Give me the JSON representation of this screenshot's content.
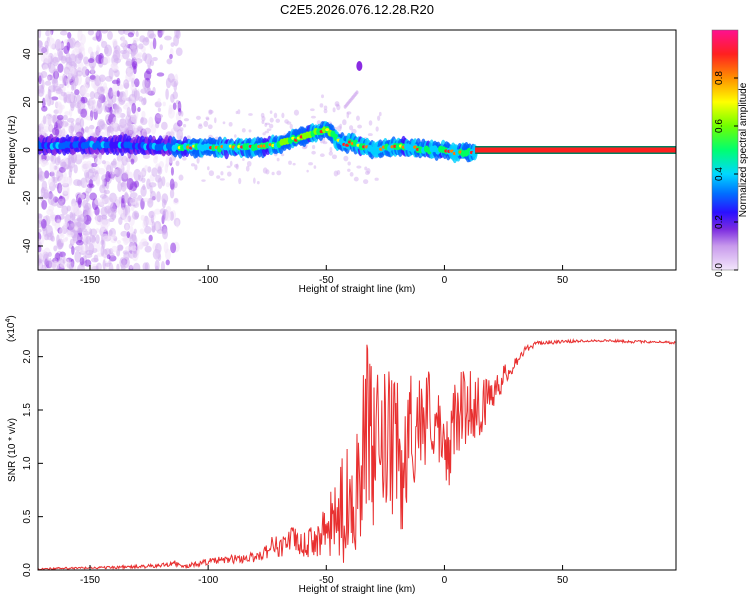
{
  "figure_title": "C2E5.2026.076.12.28.R20",
  "chart_data": [
    {
      "type": "heatmap",
      "title": "C2E5.2026.076.12.28.R20",
      "xlabel": "Height of straight line (km)",
      "ylabel": "Frequency (Hz)",
      "xlim": [
        -172,
        98
      ],
      "ylim": [
        -50,
        50
      ],
      "x_ticks": [
        -150,
        -100,
        -50,
        0,
        50
      ],
      "x_tick_labels": [
        "-150",
        "-100",
        "-50",
        "0",
        "50"
      ],
      "y_ticks": [
        -40,
        -20,
        0,
        20,
        40
      ],
      "y_tick_labels": [
        "-40",
        "-20",
        "0",
        "20",
        "40"
      ],
      "colorbar": {
        "label": "Normalized spectral amplitude",
        "range": [
          0,
          1
        ],
        "ticks": [
          0.0,
          0.2,
          0.4,
          0.6,
          0.8
        ],
        "tick_labels": [
          "0.0",
          "0.2",
          "0.4",
          "0.6",
          "0.8"
        ],
        "colormap": [
          "#f2e4fa",
          "#d4b0f0",
          "#8a2be2",
          "#3a10ff",
          "#0060ff",
          "#00d0ff",
          "#00ff60",
          "#80ff00",
          "#ffff00",
          "#ff8000",
          "#ff2020",
          "#ff0080"
        ]
      },
      "ridge": {
        "x": [
          -150,
          -140,
          -130,
          -120,
          -110,
          -100,
          -90,
          -80,
          -75,
          -70,
          -65,
          -60,
          -55,
          -50,
          -48,
          -45,
          -42,
          -40,
          -35,
          -30,
          -25,
          -20,
          -15,
          -10,
          -5,
          0,
          5,
          10,
          13
        ],
        "freq": [
          2,
          2,
          2,
          1.5,
          1,
          1,
          1,
          1,
          1.5,
          2.5,
          4,
          5.5,
          7,
          8.5,
          7,
          4,
          2,
          3,
          1.5,
          0,
          1,
          1.5,
          1,
          0.5,
          0,
          0,
          -1,
          -1,
          -1
        ]
      },
      "saturated_band": {
        "x": [
          13,
          98
        ],
        "freq": 0
      },
      "streak": {
        "x": [
          -42,
          -37
        ],
        "freq": [
          18,
          24
        ]
      },
      "blob": {
        "x": -36,
        "freq": 35
      }
    },
    {
      "type": "line",
      "xlabel": "Height of straight line (km)",
      "ylabel": "SNR (10 * v/v)",
      "multiplier_label": "(x10",
      "multiplier_exponent": "4",
      "multiplier_suffix": ")",
      "xlim": [
        -172,
        98
      ],
      "ylim": [
        0,
        2.25
      ],
      "x_ticks": [
        -150,
        -100,
        -50,
        0,
        50
      ],
      "x_tick_labels": [
        "-150",
        "-100",
        "-50",
        "0",
        "50"
      ],
      "y_ticks": [
        0.0,
        0.5,
        1.0,
        1.5,
        2.0
      ],
      "y_tick_labels": [
        "0.0",
        "0.5",
        "1.0",
        "1.5",
        "2.0"
      ],
      "color": "#e83030",
      "series": {
        "name": "SNR",
        "anchors_x": [
          -172,
          -150,
          -130,
          -120,
          -115,
          -110,
          -100,
          -90,
          -80,
          -75,
          -72,
          -70,
          -65,
          -60,
          -55,
          -50,
          -45,
          -40,
          -35,
          -33,
          -30,
          -25,
          -20,
          -18,
          -15,
          -10,
          -5,
          0,
          5,
          10,
          15,
          18,
          20,
          25,
          30,
          35,
          40,
          50,
          60,
          70,
          80,
          90,
          98
        ],
        "anchors_y": [
          0.01,
          0.02,
          0.03,
          0.04,
          0.07,
          0.03,
          0.08,
          0.1,
          0.12,
          0.18,
          0.26,
          0.2,
          0.3,
          0.22,
          0.28,
          0.35,
          0.5,
          0.65,
          1.0,
          1.4,
          1.05,
          1.2,
          1.1,
          0.8,
          1.3,
          1.4,
          1.5,
          1.0,
          1.45,
          1.55,
          1.55,
          1.55,
          1.7,
          1.8,
          1.95,
          2.08,
          2.13,
          2.14,
          2.15,
          2.15,
          2.14,
          2.14,
          2.13
        ],
        "noise_amplitude": [
          0.01,
          0.01,
          0.015,
          0.02,
          0.03,
          0.02,
          0.03,
          0.04,
          0.05,
          0.07,
          0.09,
          0.1,
          0.12,
          0.12,
          0.15,
          0.25,
          0.45,
          0.6,
          0.7,
          0.8,
          0.75,
          0.7,
          0.7,
          0.6,
          0.55,
          0.5,
          0.45,
          0.4,
          0.38,
          0.35,
          0.3,
          0.25,
          0.2,
          0.12,
          0.06,
          0.03,
          0.02,
          0.015,
          0.012,
          0.012,
          0.012,
          0.012,
          0.012
        ]
      }
    }
  ]
}
